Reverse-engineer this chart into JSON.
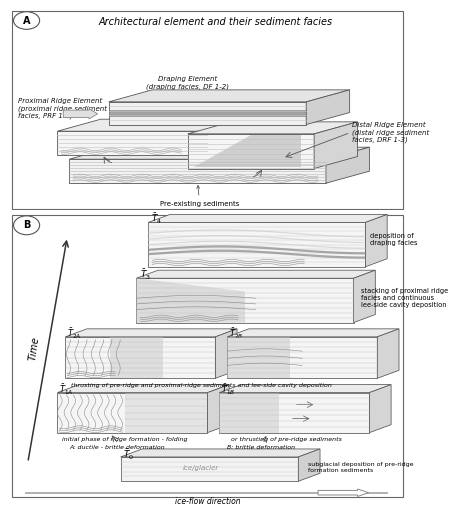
{
  "title_A": "Architectural element and their sediment facies",
  "draping_label": "Draping Element\n(draping facies, DF 1-2)",
  "proximal_label": "Proximal Ridge Element\n(proximal ridge sediment\nfacies, PRF 1-5)",
  "distal_label": "Distal Ridge Element\n(distal ridge sediment\nfacies, DRF 1-3)",
  "pre_existing_label": "Pre-existing sediments",
  "T4_label": "$\\bar{T}_4$",
  "T4_desc": "deposition of\ndraping facies",
  "T3_label": "$\\bar{T}_3$",
  "T3_desc": "stacking of proximal ridge\nfacies and continuous\nlee-side cavity deposition",
  "T2A_label": "$\\bar{T}_{2A}$",
  "T2B_label": "$\\bar{T}_{2B}$",
  "T2_desc": "thrusting of pre-ridge and proximal-ridge sediments and lee-side cavity deposition",
  "T1A_label": "$\\bar{T}_{1A}$",
  "T1B_label": "$\\bar{T}_{1B}$",
  "T1A_desc": "initial phase of ridge formation - folding",
  "T1B_desc": "or thrusting of pre-ridge sediments",
  "T1A_mode": "A: ductile - brittle deformation",
  "T1B_mode": "B: brittle deformation",
  "T0_label": "$\\bar{T}_0$",
  "T0_glacier": "ice/glacier",
  "T0_desc": "subglacial deposition of pre-ridge\nformation sediments",
  "time_label": "Time",
  "ice_flow": "ice-flow direction"
}
